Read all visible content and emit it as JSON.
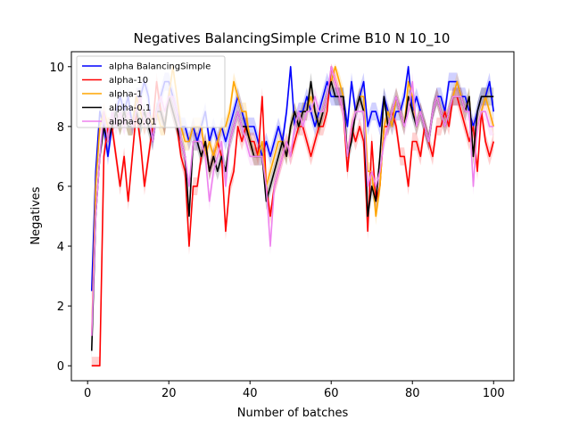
{
  "chart_data": {
    "type": "line",
    "title": "Negatives BalancingSimple Crime B10 N 10_10",
    "xlabel": "Number of batches",
    "ylabel": "Negatives",
    "xlim": [
      -4,
      105
    ],
    "ylim": [
      -0.5,
      10.5
    ],
    "xticks": [
      0,
      20,
      40,
      60,
      80,
      100
    ],
    "yticks": [
      0,
      2,
      4,
      6,
      8,
      10
    ],
    "legend_position": "top-left",
    "grid": false,
    "series": [
      {
        "name": "alpha BalancingSimple",
        "color": "#0000ff",
        "values": [
          2.5,
          6.5,
          8.5,
          8,
          7,
          8,
          8.5,
          9,
          8.5,
          9,
          8,
          9,
          9,
          9.5,
          9,
          7.5,
          8.5,
          9,
          9.5,
          9.5,
          9,
          8.5,
          8,
          8,
          7.5,
          8,
          7.5,
          8,
          8.5,
          7.5,
          8,
          7.5,
          8,
          7.5,
          8,
          8.5,
          9,
          8.5,
          8,
          8,
          8,
          7.5,
          7,
          7.5,
          7,
          7.5,
          8,
          7.5,
          8.5,
          10,
          8,
          8.5,
          8.5,
          9,
          8.5,
          8,
          8.5,
          9,
          9.5,
          9,
          9,
          9,
          9,
          8,
          9.5,
          8.5,
          9,
          9.5,
          8,
          8.5,
          8.5,
          8,
          9,
          8.5,
          8,
          8.5,
          8.5,
          9,
          10,
          8.5,
          9,
          8.5,
          8,
          7.5,
          8.5,
          9,
          9,
          8.5,
          9.5,
          9.5,
          9.5,
          9,
          9,
          8.5,
          8,
          8.5,
          9,
          9,
          9.5,
          8.5
        ]
      },
      {
        "name": "alpha-10",
        "color": "#ff0000",
        "values": [
          0,
          0,
          0,
          7,
          8,
          8,
          7,
          6,
          7,
          5.5,
          7,
          8.5,
          7.5,
          6,
          7,
          8,
          9.5,
          8.5,
          8,
          9,
          8.5,
          8,
          7,
          6.5,
          4,
          6,
          6,
          7,
          7.5,
          6.5,
          7,
          7.5,
          7,
          4.5,
          6,
          6.5,
          8,
          7.5,
          8,
          7.5,
          7.5,
          7,
          9,
          6,
          5,
          6,
          6.5,
          7,
          7.5,
          7,
          7.5,
          8,
          8,
          7.5,
          7,
          7.5,
          8,
          8,
          8.5,
          10,
          9.5,
          9,
          8.5,
          6.5,
          8,
          7.5,
          8,
          7.5,
          4.5,
          7.5,
          5.5,
          6,
          8,
          8,
          8.5,
          8,
          7,
          7,
          6,
          7.5,
          7.5,
          7,
          8,
          7.5,
          7,
          8,
          8,
          8.5,
          8,
          9,
          9,
          8.5,
          8,
          7.5,
          8,
          6.5,
          8.5,
          7.5,
          7,
          7.5
        ]
      },
      {
        "name": "alpha-1",
        "color": "#ffa500",
        "values": [
          1,
          6,
          8,
          8.5,
          8,
          8,
          8.5,
          8,
          8.5,
          8,
          8,
          9,
          8.5,
          8,
          8.5,
          8,
          8.5,
          8,
          8,
          9,
          10,
          9,
          8,
          7.5,
          7.5,
          8,
          8,
          8,
          7,
          7.5,
          7,
          7.5,
          8,
          8,
          8.5,
          9.5,
          9,
          8.5,
          8.5,
          7.5,
          7,
          7,
          7.5,
          6,
          6.5,
          7,
          7.5,
          7.5,
          7,
          8,
          8.5,
          8,
          8.5,
          8.5,
          9,
          8.5,
          8,
          8.5,
          9,
          9.5,
          10,
          9.5,
          9,
          7,
          8,
          8.5,
          9,
          9,
          6.5,
          6.5,
          5,
          6,
          8,
          8.5,
          8,
          9,
          8.5,
          8,
          9.5,
          9,
          8,
          8.5,
          8,
          7.5,
          8.5,
          9,
          8.5,
          8,
          8.5,
          9,
          9.5,
          9,
          8.5,
          9,
          7,
          8,
          8.5,
          9,
          8.5,
          8
        ]
      },
      {
        "name": "alpha-0.1",
        "color": "#000000",
        "values": [
          0.5,
          5,
          7,
          8,
          7.5,
          8,
          8.5,
          8,
          8.5,
          8,
          8,
          8.5,
          8,
          8.5,
          8,
          7.5,
          8.5,
          8.5,
          8,
          9,
          8.5,
          8,
          7.5,
          7,
          5,
          7.5,
          7.5,
          7,
          7.5,
          6.5,
          7,
          6.5,
          7,
          6.5,
          7.5,
          8,
          8.5,
          8,
          8,
          7.5,
          7,
          7,
          7,
          5.5,
          6,
          6.5,
          7,
          7.5,
          7,
          8,
          8.5,
          8,
          8.5,
          8.5,
          9.5,
          8.5,
          8,
          8.5,
          9,
          9.5,
          9,
          9,
          9,
          7,
          7.5,
          8.5,
          9,
          8.5,
          5,
          6,
          5.5,
          7,
          9,
          8,
          8.5,
          9,
          8.5,
          8,
          9,
          8.5,
          8,
          8.5,
          8,
          7.5,
          8.5,
          9,
          8.5,
          8,
          8.5,
          9,
          9,
          9,
          8.5,
          9,
          7,
          8.5,
          9,
          9,
          9,
          9
        ]
      },
      {
        "name": "alpha-0.01",
        "color": "#ee82ee",
        "values": [
          1,
          5,
          7,
          8.5,
          7.5,
          8.5,
          8,
          8.5,
          8,
          8.5,
          8,
          8.5,
          9,
          8,
          8.5,
          7.5,
          8.5,
          9,
          8.5,
          9,
          9,
          8.5,
          7.5,
          7,
          6,
          7.5,
          7.5,
          7.5,
          7,
          5.5,
          6.5,
          7,
          7.5,
          6,
          7.5,
          8,
          8.5,
          8,
          7.5,
          7,
          7,
          7,
          7,
          6,
          4,
          6,
          6.5,
          7,
          7.5,
          7,
          8,
          8.5,
          8,
          8.5,
          8.5,
          9,
          8.5,
          8.5,
          9,
          10,
          9.5,
          9,
          8.5,
          7,
          8,
          8.5,
          8.5,
          8.5,
          6,
          6.5,
          6,
          6.5,
          7.5,
          8,
          8.5,
          9,
          8.5,
          8,
          8.5,
          9.5,
          8,
          8.5,
          8,
          7.5,
          8.5,
          9,
          8.5,
          8,
          8.5,
          9,
          9,
          9,
          8.5,
          8.5,
          6,
          8,
          8.5,
          8.5,
          8,
          8
        ]
      }
    ]
  }
}
